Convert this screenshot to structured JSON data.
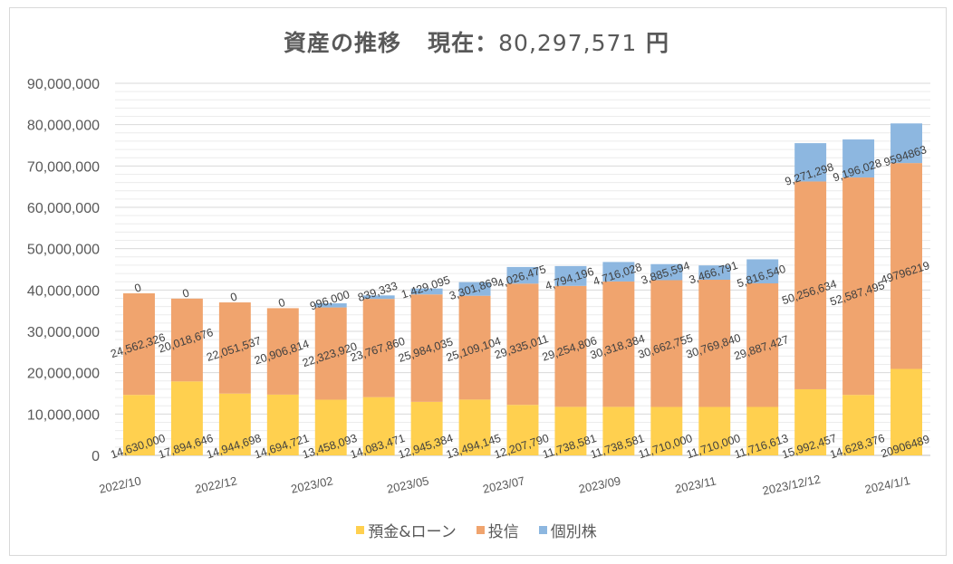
{
  "chart_data": {
    "type": "bar",
    "stacked": true,
    "title": "資産の推移",
    "title_current_label": "現在：",
    "title_current_value": "80,297,571",
    "title_currency": "円",
    "xlabel": "",
    "ylabel": "",
    "ylim": [
      0,
      90000000
    ],
    "ytick_step": 10000000,
    "ytick_labels": [
      "0",
      "10,000,000",
      "20,000,000",
      "30,000,000",
      "40,000,000",
      "50,000,000",
      "60,000,000",
      "70,000,000",
      "80,000,000",
      "90,000,000"
    ],
    "grid": true,
    "minor_grid_step": 2000000,
    "legend_position": "bottom",
    "categories": [
      "2022/10",
      "",
      "2022/12",
      "",
      "2023/02",
      "",
      "2023/05",
      "",
      "2023/07",
      "",
      "2023/09",
      "",
      "2023/11",
      "",
      "2023/12/12",
      "",
      "2024/1/1"
    ],
    "series": [
      {
        "name": "預金&ローン",
        "color": "#FFD04F",
        "values": [
          14630000,
          17894646,
          14944698,
          14694721,
          13458093,
          14083471,
          12945384,
          13494145,
          12207790,
          11738581,
          11738581,
          11710000,
          11710000,
          11716613,
          15992457,
          14628376,
          20906489
        ],
        "labels": [
          "14,630,000",
          "17,894,646",
          "14,944,698",
          "14,694,721",
          "13,458,093",
          "14,083,471",
          "12,945,384",
          "13,494,145",
          "12,207,790",
          "11,738,581",
          "11,738,581",
          "11,710,000",
          "11,710,000",
          "11,716,613",
          "15,992,457",
          "14,628,376",
          "20906489"
        ]
      },
      {
        "name": "投信",
        "color": "#F0A46E",
        "values": [
          24562326,
          20018676,
          22051537,
          20906814,
          22323920,
          23767860,
          25984035,
          25109104,
          29335011,
          29254806,
          30318384,
          30662755,
          30769840,
          29887427,
          50256634,
          52587495,
          49796219
        ],
        "labels": [
          "24,562,326",
          "20,018,676",
          "22,051,537",
          "20,906,814",
          "22,323,920",
          "23,767,860",
          "25,984,035",
          "25,109,104",
          "29,335,011",
          "29,254,806",
          "30,318,384",
          "30,662,755",
          "30,769,840",
          "29,887,427",
          "50,256,634",
          "52,587,495",
          "49796219"
        ]
      },
      {
        "name": "個別株",
        "color": "#8DB7E0",
        "values": [
          0,
          0,
          0,
          0,
          996000,
          839333,
          1429095,
          3301869,
          4026475,
          4794196,
          4716028,
          3885594,
          3466791,
          5816540,
          9271298,
          9196028,
          9594863
        ],
        "labels": [
          "0",
          "0",
          "0",
          "0",
          "996,000",
          "839,333",
          "1,429,095",
          "3,301,869",
          "4,026,475",
          "4,794,196",
          "4,716,028",
          "3,885,594",
          "3,466,791",
          "5,816,540",
          "9,271,298",
          "9,196,028",
          "9594863"
        ]
      }
    ]
  }
}
